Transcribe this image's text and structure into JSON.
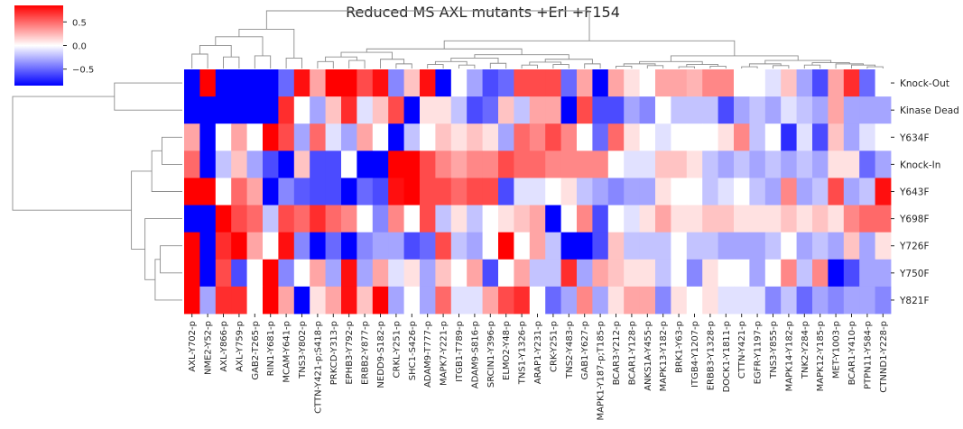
{
  "chart_data": {
    "type": "heatmap",
    "title": "Reduced MS AXL mutants +Erl +F154",
    "colormap": {
      "name": "bwr",
      "low": "#0000ff",
      "mid": "#ffffff",
      "high": "#ff0000",
      "vmin": -0.85,
      "vmax": 0.85,
      "ticks": [
        0.5,
        0.0,
        -0.5
      ],
      "tick_labels": [
        "0.5",
        "0.0",
        "−0.5"
      ]
    },
    "rows": [
      "Knock-Out",
      "Kinase Dead",
      "Y634F",
      "Knock-In",
      "Y643F",
      "Y698F",
      "Y726F",
      "Y750F",
      "Y821F"
    ],
    "columns": [
      "AXL-Y702-p",
      "NME2-Y52-p",
      "AXL-Y866-p",
      "AXL-Y759-p",
      "GAB2-T265-p",
      "RIN1-Y681-p",
      "MCAM-Y641-p",
      "TNS3-Y802-p",
      "CTTN-Y421-p;S418-p",
      "PRKCD-Y313-p",
      "EPHB3-Y792-p",
      "ERBB2-Y877-p",
      "NEDD9-S182-p",
      "CRKL-Y251-p",
      "SHC1-S426-p",
      "ADAM9-T777-p",
      "MAPK7-Y221-p",
      "ITGB1-T789-p",
      "ADAM9-S816-p",
      "SRCIN1-Y396-p",
      "ELMO2-Y48-p",
      "TNS1-Y1326-p",
      "ARAP1-Y231-p",
      "CRK-Y251-p",
      "TNS2-Y483-p",
      "GAB1-Y627-p",
      "MAPK1-Y187-p;T185-p",
      "BCAR3-Y212-p",
      "BCAR1-Y128-p",
      "ANKS1A-Y455-p",
      "MAPK13-Y182-p",
      "BRK1-Y63-p",
      "ITGB4-Y1207-p",
      "ERBB3-Y1328-p",
      "DOCK1-Y1811-p",
      "CTTN-Y421-p",
      "EGFR-Y1197-p",
      "TNS3-Y855-p",
      "MAPK14-Y182-p",
      "TNK2-Y284-p",
      "MAPK12-Y185-p",
      "MET-Y1003-p",
      "BCAR1-Y410-p",
      "PTPN11-Y584-p",
      "CTNND1-Y228-p"
    ],
    "values": [
      [
        -1.0,
        1.0,
        -1.0,
        -0.85,
        -1.0,
        -1.0,
        -0.5,
        0.8,
        0.3,
        1.0,
        1.0,
        0.6,
        0.8,
        -0.4,
        0.2,
        0.8,
        -0.85,
        0.0,
        -0.3,
        -0.6,
        -0.5,
        0.6,
        0.6,
        0.6,
        -0.5,
        0.3,
        -0.9,
        0.3,
        0.1,
        0.0,
        0.3,
        0.3,
        0.25,
        0.4,
        0.4,
        0.0,
        0.0,
        -0.1,
        0.2,
        -0.3,
        -0.6,
        0.3,
        0.7,
        -0.5,
        0.0
      ],
      [
        -1.0,
        -1.0,
        -1.0,
        -1.0,
        -1.0,
        -1.0,
        0.7,
        0.0,
        -0.3,
        0.2,
        0.7,
        -0.1,
        0.2,
        0.6,
        -0.85,
        0.1,
        0.1,
        -0.2,
        -0.6,
        -0.5,
        0.2,
        -0.2,
        0.3,
        0.3,
        -0.9,
        0.6,
        -0.6,
        -0.6,
        -0.3,
        -0.4,
        0.0,
        -0.2,
        -0.2,
        -0.2,
        -0.6,
        -0.3,
        -0.2,
        -0.3,
        -0.1,
        -0.2,
        -0.3,
        0.3,
        -0.3,
        -0.3,
        -0.3
      ],
      [
        0.3,
        -1.0,
        0.0,
        0.3,
        0.0,
        0.9,
        0.6,
        -0.3,
        0.5,
        -0.1,
        -0.3,
        0.3,
        0.0,
        -0.85,
        -0.2,
        0.0,
        0.2,
        0.1,
        0.2,
        0.1,
        -0.3,
        0.5,
        0.4,
        0.6,
        0.4,
        0.0,
        -0.5,
        0.5,
        0.1,
        0.0,
        -0.1,
        0.0,
        0.0,
        0.0,
        0.1,
        0.4,
        -0.2,
        0.0,
        -0.7,
        -0.1,
        -0.6,
        0.2,
        -0.3,
        -0.1,
        0.0
      ],
      [
        0.5,
        -1.0,
        -0.2,
        0.2,
        -0.3,
        -0.6,
        -0.95,
        0.2,
        -0.6,
        -0.6,
        0.0,
        -0.95,
        -0.95,
        1.0,
        0.9,
        0.6,
        0.4,
        0.3,
        0.4,
        0.4,
        0.6,
        0.5,
        0.5,
        0.4,
        0.4,
        0.4,
        0.4,
        0.0,
        -0.1,
        -0.1,
        0.2,
        0.2,
        0.1,
        -0.2,
        -0.3,
        -0.2,
        -0.3,
        -0.2,
        -0.3,
        -0.2,
        -0.3,
        0.1,
        0.1,
        -0.5,
        -0.3
      ],
      [
        1.0,
        1.0,
        0.0,
        0.5,
        0.3,
        -0.9,
        -0.4,
        -0.55,
        -0.6,
        -0.6,
        -1.0,
        -0.5,
        -0.6,
        0.8,
        1.0,
        0.6,
        0.6,
        0.5,
        0.6,
        0.6,
        -0.6,
        -0.1,
        -0.1,
        0.0,
        0.1,
        -0.2,
        -0.3,
        -0.4,
        -0.3,
        -0.3,
        0.1,
        0.0,
        0.0,
        -0.2,
        -0.1,
        0.0,
        -0.2,
        -0.3,
        0.4,
        -0.3,
        -0.2,
        0.6,
        -0.3,
        -0.2,
        0.8
      ],
      [
        -1.0,
        -1.0,
        0.9,
        0.6,
        0.5,
        -0.2,
        0.6,
        0.5,
        0.7,
        0.5,
        0.4,
        0.0,
        -0.4,
        0.4,
        0.0,
        0.6,
        -0.2,
        0.1,
        -0.2,
        0.0,
        0.1,
        0.2,
        0.3,
        -0.85,
        0.0,
        0.4,
        -0.6,
        0.0,
        -0.1,
        0.1,
        0.3,
        0.1,
        0.1,
        0.2,
        0.2,
        0.1,
        0.1,
        0.1,
        0.2,
        0.1,
        0.2,
        0.1,
        0.4,
        0.5,
        0.5
      ],
      [
        1.0,
        -1.0,
        0.7,
        1.0,
        0.3,
        0.0,
        0.8,
        -0.4,
        -1.0,
        -0.5,
        -0.85,
        -0.4,
        -0.3,
        -0.3,
        -0.6,
        -0.5,
        0.6,
        -0.2,
        -0.3,
        0.0,
        0.85,
        0.0,
        0.3,
        -0.2,
        -0.85,
        -1.0,
        -0.6,
        0.2,
        -0.2,
        -0.2,
        -0.2,
        0.0,
        -0.2,
        -0.2,
        -0.3,
        -0.3,
        -0.3,
        -0.2,
        0.0,
        -0.3,
        -0.2,
        -0.3,
        0.2,
        -0.3,
        0.1
      ],
      [
        1.0,
        -1.0,
        0.6,
        -0.6,
        0.0,
        0.9,
        -0.4,
        0.0,
        0.3,
        -0.3,
        0.8,
        -0.3,
        0.3,
        -0.1,
        0.1,
        -0.3,
        0.2,
        0.0,
        0.3,
        -0.6,
        0.0,
        0.3,
        -0.2,
        -0.2,
        0.7,
        -0.3,
        0.3,
        0.2,
        0.1,
        0.1,
        -0.2,
        0.0,
        -0.4,
        0.1,
        0.0,
        0.0,
        -0.3,
        0.0,
        0.4,
        -0.2,
        0.4,
        -0.9,
        -0.6,
        -0.3,
        -0.3
      ],
      [
        1.0,
        -0.3,
        0.7,
        0.7,
        0.0,
        1.0,
        0.3,
        -0.95,
        0.1,
        0.3,
        0.8,
        0.2,
        0.9,
        -0.3,
        0.0,
        -0.3,
        0.5,
        -0.1,
        -0.1,
        0.3,
        0.6,
        0.7,
        0.0,
        -0.5,
        -0.3,
        0.4,
        -0.3,
        0.1,
        0.3,
        0.3,
        -0.4,
        0.1,
        0.0,
        0.1,
        -0.1,
        -0.1,
        -0.1,
        -0.4,
        -0.2,
        -0.5,
        -0.3,
        -0.4,
        -0.3,
        -0.3,
        -0.4
      ]
    ],
    "row_dendrogram": true,
    "column_dendrogram": true,
    "colorbar_position": "top-left"
  }
}
